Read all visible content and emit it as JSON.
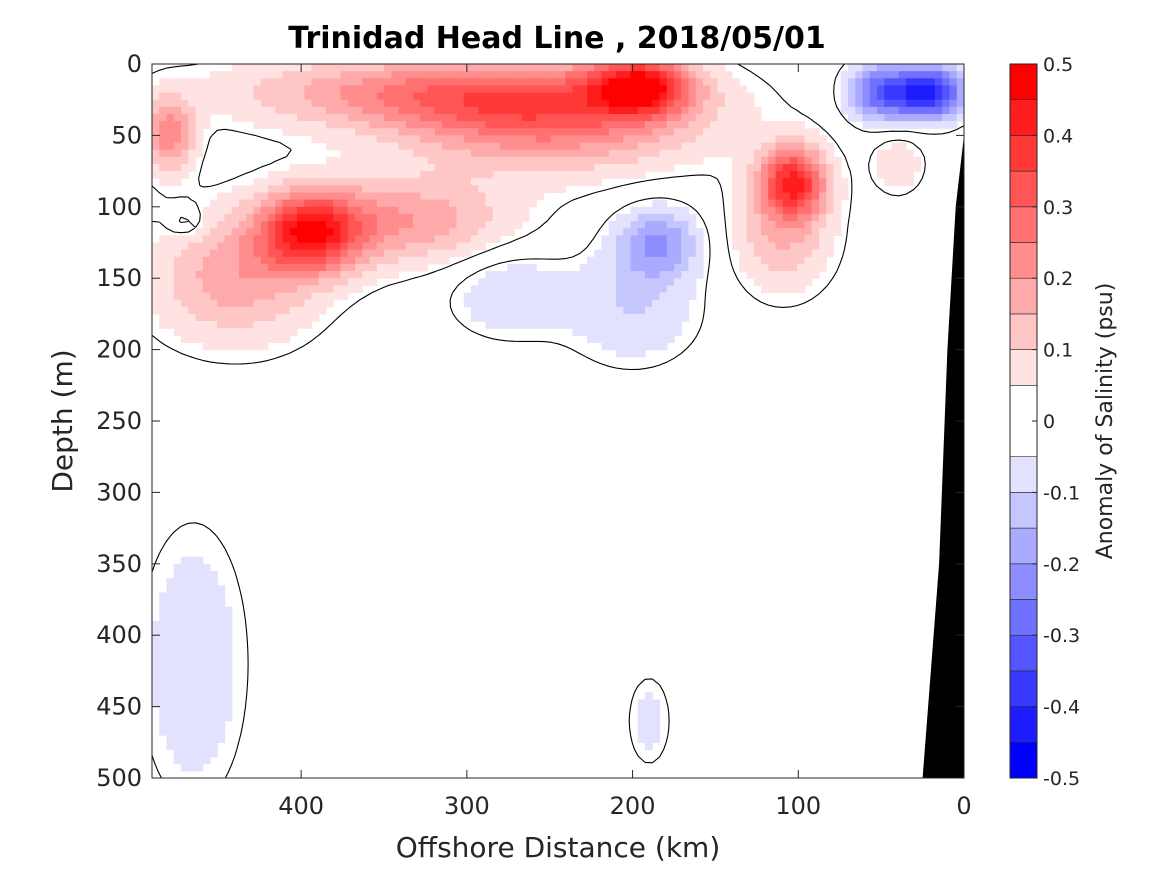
{
  "chart_data": {
    "type": "heatmap",
    "title": "Trinidad Head Line , 2018/05/01",
    "xlabel": "Offshore Distance (km)",
    "ylabel": "Depth (m)",
    "xlim": [
      490,
      0
    ],
    "ylim": [
      0,
      500
    ],
    "xticks": [
      400,
      300,
      200,
      100,
      0
    ],
    "yticks": [
      0,
      50,
      100,
      150,
      200,
      250,
      300,
      350,
      400,
      450,
      500
    ],
    "x_reversed": true,
    "y_reversed": true,
    "grid": false,
    "colorbar": {
      "label": "Anomaly of Salinity (psu)",
      "range": [
        -0.5,
        0.5
      ],
      "ticks": [
        -0.5,
        -0.4,
        -0.3,
        -0.2,
        -0.1,
        0,
        0.1,
        0.2,
        0.3,
        0.4,
        0.5
      ],
      "tick_labels": [
        "-0.5",
        "-0.4",
        "-0.3",
        "-0.2",
        "-0.1",
        "0",
        "0.1",
        "0.2",
        "0.3",
        "0.4",
        "0.5"
      ],
      "levels": [
        -0.5,
        -0.45,
        -0.4,
        -0.35,
        -0.3,
        -0.25,
        -0.2,
        -0.15,
        -0.1,
        -0.05,
        0.05,
        0.1,
        0.15,
        0.2,
        0.25,
        0.3,
        0.35,
        0.4,
        0.45,
        0.5
      ],
      "colors": [
        "#0000ff",
        "#1c1cff",
        "#3838ff",
        "#5555ff",
        "#7171ff",
        "#8d8dff",
        "#aaaaff",
        "#c6c6ff",
        "#e2e2ff",
        "#ffffff",
        "#ffe2e2",
        "#ffc6c6",
        "#ffaaaa",
        "#ff8d8d",
        "#ff7171",
        "#ff5555",
        "#ff3838",
        "#ff1c1c",
        "#ff0000"
      ]
    },
    "features": [
      {
        "sign": 1,
        "x": 320,
        "y": 20,
        "amp": 0.22,
        "sx": 120,
        "sy": 25
      },
      {
        "sign": 1,
        "x": 250,
        "y": 40,
        "amp": 0.25,
        "sx": 90,
        "sy": 35
      },
      {
        "sign": 1,
        "x": 195,
        "y": 15,
        "amp": 0.38,
        "sx": 30,
        "sy": 20
      },
      {
        "sign": 1,
        "x": 395,
        "y": 118,
        "amp": 0.36,
        "sx": 30,
        "sy": 28
      },
      {
        "sign": 1,
        "x": 440,
        "y": 150,
        "amp": 0.18,
        "sx": 50,
        "sy": 45
      },
      {
        "sign": 1,
        "x": 340,
        "y": 110,
        "amp": 0.2,
        "sx": 65,
        "sy": 30
      },
      {
        "sign": 1,
        "x": 480,
        "y": 50,
        "amp": 0.24,
        "sx": 15,
        "sy": 25
      },
      {
        "sign": 1,
        "x": 103,
        "y": 82,
        "amp": 0.38,
        "sx": 20,
        "sy": 25
      },
      {
        "sign": 1,
        "x": 110,
        "y": 120,
        "amp": 0.15,
        "sx": 30,
        "sy": 40
      },
      {
        "sign": 1,
        "x": 40,
        "y": 70,
        "amp": 0.1,
        "sx": 15,
        "sy": 20
      },
      {
        "sign": -1,
        "x": 185,
        "y": 125,
        "amp": 0.2,
        "sx": 25,
        "sy": 25
      },
      {
        "sign": -1,
        "x": 200,
        "y": 170,
        "amp": 0.1,
        "sx": 40,
        "sy": 40
      },
      {
        "sign": -1,
        "x": 275,
        "y": 160,
        "amp": 0.1,
        "sx": 35,
        "sy": 30
      },
      {
        "sign": -1,
        "x": 20,
        "y": 20,
        "amp": 0.42,
        "sx": 20,
        "sy": 18
      },
      {
        "sign": -1,
        "x": 50,
        "y": 20,
        "amp": 0.3,
        "sx": 20,
        "sy": 20
      },
      {
        "sign": -1,
        "x": 465,
        "y": 420,
        "amp": 0.1,
        "sx": 30,
        "sy": 90
      },
      {
        "sign": -1,
        "x": 190,
        "y": 460,
        "amp": 0.08,
        "sx": 12,
        "sy": 30
      },
      {
        "sign": -1,
        "x": 470,
        "y": 110,
        "amp": 0.1,
        "sx": 10,
        "sy": 10
      }
    ],
    "topography_x": [
      0,
      0,
      5,
      10,
      15,
      25
    ],
    "topography_y": [
      0,
      50,
      100,
      200,
      350,
      500
    ]
  }
}
